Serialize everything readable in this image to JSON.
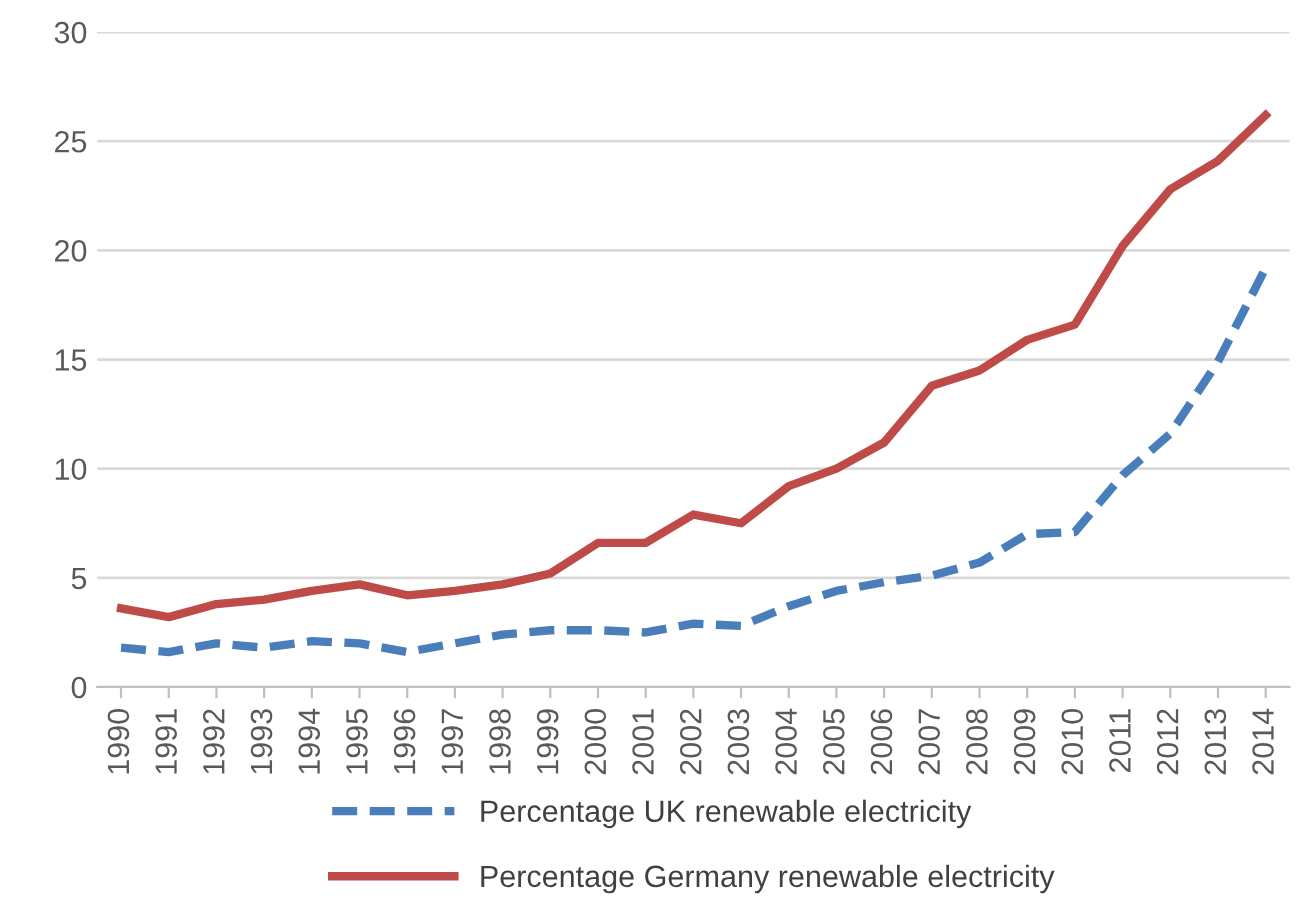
{
  "chart_data": {
    "type": "line",
    "categories": [
      "1990",
      "1991",
      "1992",
      "1993",
      "1994",
      "1995",
      "1996",
      "1997",
      "1998",
      "1999",
      "2000",
      "2001",
      "2002",
      "2003",
      "2004",
      "2005",
      "2006",
      "2007",
      "2008",
      "2009",
      "2010",
      "2011",
      "2012",
      "2013",
      "2014"
    ],
    "series": [
      {
        "name": "Percentage UK renewable electricity",
        "color": "#4a7ebb",
        "line_style": "dashed",
        "values": [
          1.8,
          1.6,
          2.0,
          1.8,
          2.1,
          2.0,
          1.6,
          2.0,
          2.4,
          2.6,
          2.6,
          2.5,
          2.9,
          2.8,
          3.7,
          4.4,
          4.8,
          5.1,
          5.7,
          7.0,
          7.1,
          9.7,
          11.6,
          14.9,
          19.2
        ]
      },
      {
        "name": "Percentage Germany renewable electricity",
        "color": "#be4b48",
        "line_style": "solid",
        "values": [
          3.6,
          3.2,
          3.8,
          4.0,
          4.4,
          4.7,
          4.2,
          4.4,
          4.7,
          5.2,
          6.6,
          6.6,
          7.9,
          7.5,
          9.2,
          10.0,
          11.2,
          13.8,
          14.5,
          15.9,
          16.6,
          20.2,
          22.8,
          24.1,
          26.2
        ]
      }
    ],
    "ylim": [
      0,
      30
    ],
    "yticks": [
      0,
      5,
      10,
      15,
      20,
      25,
      30
    ],
    "grid": "y",
    "legend": "bottom",
    "marker": "none"
  }
}
